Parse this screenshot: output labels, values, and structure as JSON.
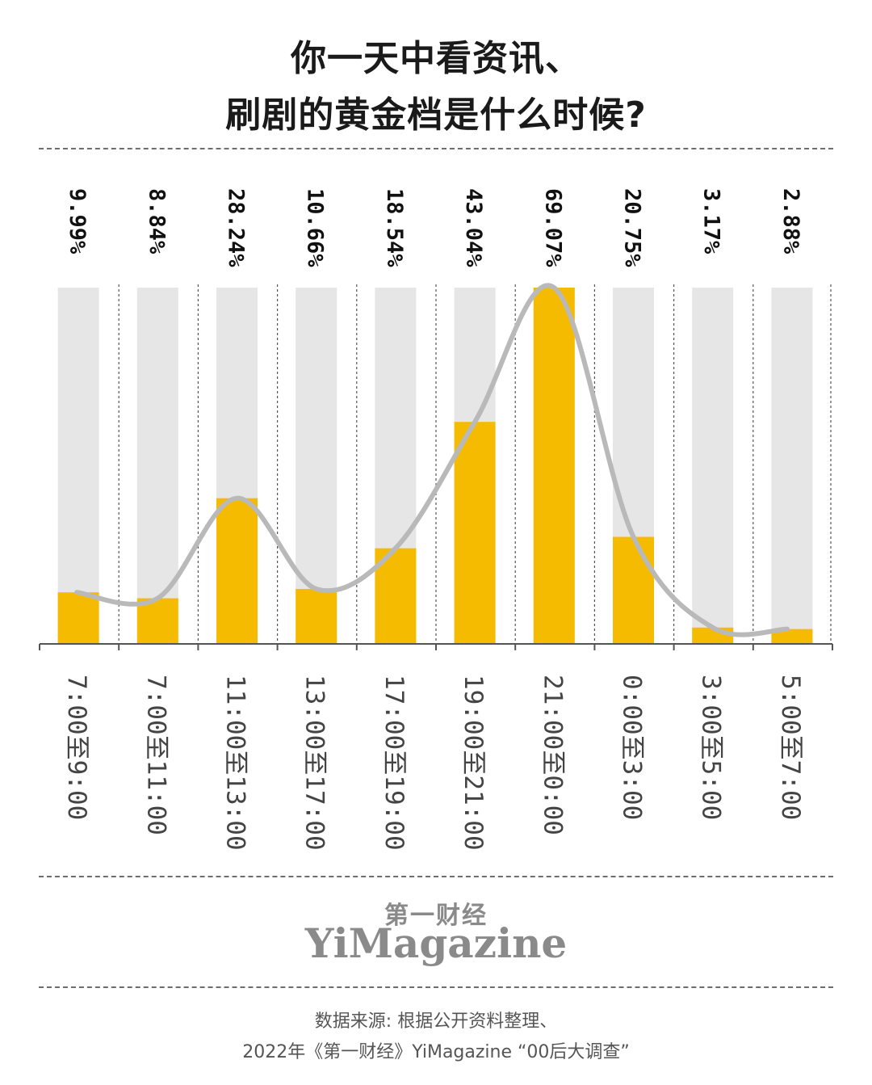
{
  "title": {
    "line1": "你一天中看资讯、",
    "line2": "刷剧的黄金档是什么时候?"
  },
  "chart_data": {
    "type": "bar",
    "categories": [
      "7:00至9:00",
      "7:00至11:00",
      "11:00至13:00",
      "13:00至17:00",
      "17:00至19:00",
      "19:00至21:00",
      "21:00至0:00",
      "0:00至3:00",
      "3:00至5:00",
      "5:00至7:00"
    ],
    "values": [
      9.99,
      8.84,
      28.24,
      10.66,
      18.54,
      43.04,
      69.07,
      20.75,
      3.17,
      2.88
    ],
    "value_labels": [
      "9.99%",
      "8.84%",
      "28.24%",
      "10.66%",
      "18.54%",
      "43.04%",
      "69.07%",
      "20.75%",
      "3.17%",
      "2.88%"
    ],
    "ylim": [
      0,
      69.07
    ],
    "trend_line": true,
    "grid": false,
    "colors": {
      "bar": "#f5bb00",
      "background_bar": "#e6e6e6",
      "trend": "#b9b9b9",
      "axis": "#555555"
    }
  },
  "brand": {
    "chinese": "第一财经",
    "english": "YiMagazine"
  },
  "source": {
    "line1": "数据来源: 根据公开资料整理、",
    "line2": "2022年《第一财经》YiMagazine “00后大调查”"
  }
}
